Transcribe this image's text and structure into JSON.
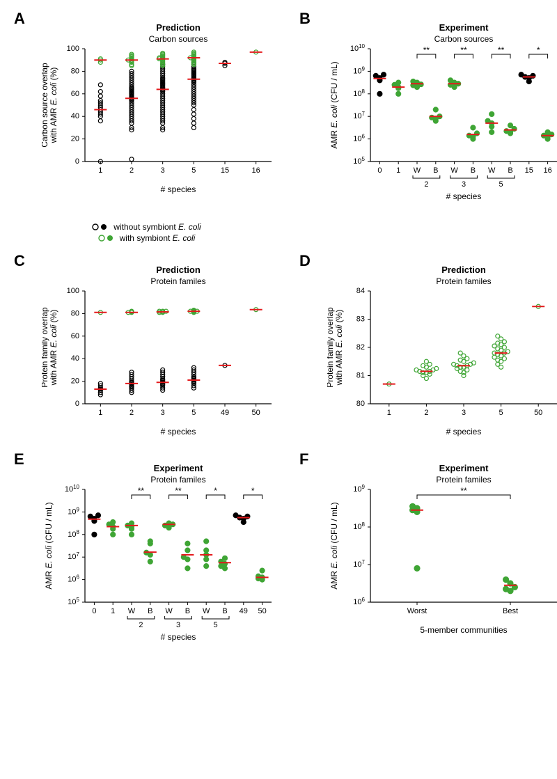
{
  "colors": {
    "black": "#000000",
    "green": "#3fa535",
    "red": "#e41a1c",
    "axis": "#000000"
  },
  "legend": {
    "without": "without symbiont ",
    "with": "with symbiont ",
    "ecoli": "E. coli"
  },
  "panels": {
    "A": {
      "label": "A",
      "title1": "Prediction",
      "title2": "Carbon sources",
      "ylabel": "Carbon source overlap\nwith AMR E. coli (%)",
      "xlabel": "# species",
      "xticks": [
        "1",
        "2",
        "3",
        "5",
        "15",
        "16"
      ],
      "ylim": [
        0,
        100
      ],
      "yticks": [
        0,
        20,
        40,
        60,
        80,
        100
      ],
      "groups": [
        {
          "x": 0,
          "color": "black",
          "median": 46,
          "pts": [
            0,
            36,
            40,
            42,
            44,
            46,
            48,
            50,
            52,
            54,
            58,
            62,
            68
          ]
        },
        {
          "x": 0,
          "color": "green",
          "median": 90,
          "pts": [
            88,
            90,
            91
          ]
        },
        {
          "x": 1,
          "color": "black",
          "median": 56,
          "pts": [
            2,
            28,
            30,
            34,
            36,
            38,
            40,
            42,
            44,
            46,
            48,
            50,
            52,
            54,
            55,
            56,
            57,
            58,
            59,
            60,
            61,
            62,
            63,
            64,
            65,
            66,
            68,
            70,
            72,
            74,
            76,
            78,
            80
          ]
        },
        {
          "x": 1,
          "color": "green",
          "median": 90,
          "pts": [
            85,
            86,
            88,
            89,
            90,
            90,
            91,
            92,
            93,
            94,
            95
          ]
        },
        {
          "x": 2,
          "color": "black",
          "median": 64,
          "pts": [
            28,
            30,
            34,
            36,
            38,
            40,
            42,
            44,
            46,
            48,
            50,
            52,
            54,
            56,
            58,
            60,
            62,
            63,
            64,
            65,
            66,
            67,
            68,
            69,
            70,
            71,
            72,
            73,
            74,
            76,
            78,
            80,
            82,
            84,
            86
          ]
        },
        {
          "x": 2,
          "color": "green",
          "median": 91,
          "pts": [
            85,
            86,
            87,
            88,
            89,
            90,
            91,
            91,
            92,
            92,
            93,
            94,
            95,
            96
          ]
        },
        {
          "x": 3,
          "color": "black",
          "median": 73,
          "pts": [
            30,
            34,
            38,
            42,
            46,
            50,
            52,
            54,
            56,
            58,
            60,
            62,
            64,
            66,
            68,
            70,
            71,
            72,
            73,
            74,
            75,
            76,
            77,
            78,
            79,
            80,
            81,
            82,
            84,
            86,
            88,
            90
          ]
        },
        {
          "x": 3,
          "color": "green",
          "median": 92,
          "pts": [
            86,
            87,
            88,
            89,
            90,
            91,
            92,
            92,
            93,
            94,
            95,
            96,
            97
          ]
        },
        {
          "x": 4,
          "color": "black",
          "median": 87,
          "pts": [
            85,
            87,
            88
          ]
        },
        {
          "x": 5,
          "color": "green",
          "median": 97,
          "pts": [
            97
          ]
        }
      ]
    },
    "B": {
      "label": "B",
      "title1": "Experiment",
      "title2": "Carbon sources",
      "ylabel": "AMR E. coli (CFU / mL)",
      "xlabel": "# species",
      "xticks": [
        "0",
        "1",
        "W",
        "B",
        "W",
        "B",
        "W",
        "B",
        "15",
        "16"
      ],
      "groupbrackets": [
        {
          "span": [
            2,
            3
          ],
          "label": "2"
        },
        {
          "span": [
            4,
            5
          ],
          "label": "3"
        },
        {
          "span": [
            6,
            7
          ],
          "label": "5"
        }
      ],
      "ylim": [
        5,
        10
      ],
      "yticks": [
        5,
        6,
        7,
        8,
        9,
        10
      ],
      "sig": [
        {
          "a": 2,
          "b": 3,
          "t": "**"
        },
        {
          "a": 4,
          "b": 5,
          "t": "**"
        },
        {
          "a": 6,
          "b": 7,
          "t": "**"
        },
        {
          "a": 8,
          "b": 9,
          "t": "*"
        }
      ],
      "groups": [
        {
          "x": 0,
          "color": "black",
          "fill": true,
          "median": 8.68,
          "pts": [
            8.0,
            8.6,
            8.7,
            8.8,
            8.85
          ]
        },
        {
          "x": 1,
          "color": "green",
          "fill": true,
          "median": 8.3,
          "pts": [
            8.0,
            8.25,
            8.3,
            8.4,
            8.5
          ]
        },
        {
          "x": 2,
          "color": "green",
          "fill": true,
          "median": 8.45,
          "pts": [
            8.3,
            8.38,
            8.42,
            8.5,
            8.55
          ]
        },
        {
          "x": 3,
          "color": "green",
          "fill": true,
          "median": 7.0,
          "pts": [
            6.8,
            6.9,
            6.95,
            7.0,
            7.3
          ]
        },
        {
          "x": 4,
          "color": "green",
          "fill": true,
          "median": 8.45,
          "pts": [
            8.3,
            8.4,
            8.45,
            8.5,
            8.6
          ]
        },
        {
          "x": 5,
          "color": "green",
          "fill": true,
          "median": 6.2,
          "pts": [
            6.0,
            6.1,
            6.15,
            6.25,
            6.5
          ]
        },
        {
          "x": 6,
          "color": "green",
          "fill": true,
          "median": 6.7,
          "pts": [
            6.3,
            6.55,
            6.7,
            6.8,
            7.1
          ]
        },
        {
          "x": 7,
          "color": "green",
          "fill": true,
          "median": 6.4,
          "pts": [
            6.25,
            6.3,
            6.35,
            6.45,
            6.6
          ]
        },
        {
          "x": 8,
          "color": "black",
          "fill": true,
          "median": 8.75,
          "pts": [
            8.55,
            8.7,
            8.75,
            8.8,
            8.85
          ]
        },
        {
          "x": 9,
          "color": "green",
          "fill": true,
          "median": 6.15,
          "pts": [
            6.0,
            6.1,
            6.15,
            6.2,
            6.3
          ]
        }
      ]
    },
    "C": {
      "label": "C",
      "title1": "Prediction",
      "title2": "Protein familes",
      "ylabel": "Protein family overlap\nwith AMR E. coli (%)",
      "xlabel": "# species",
      "xticks": [
        "1",
        "2",
        "3",
        "5",
        "49",
        "50"
      ],
      "ylim": [
        0,
        100
      ],
      "yticks": [
        0,
        20,
        40,
        60,
        80,
        100
      ],
      "groups": [
        {
          "x": 0,
          "color": "black",
          "median": 13,
          "pts": [
            8,
            10,
            12,
            13,
            14,
            16,
            18
          ]
        },
        {
          "x": 0,
          "color": "green",
          "median": 81,
          "pts": [
            81
          ]
        },
        {
          "x": 1,
          "color": "black",
          "median": 18,
          "pts": [
            10,
            12,
            14,
            15,
            16,
            17,
            18,
            19,
            20,
            22,
            24,
            26,
            28
          ]
        },
        {
          "x": 1,
          "color": "green",
          "median": 81,
          "pts": [
            81,
            81,
            81.5,
            82
          ]
        },
        {
          "x": 2,
          "color": "black",
          "median": 19,
          "pts": [
            12,
            14,
            16,
            17,
            18,
            19,
            20,
            21,
            22,
            24,
            26,
            28,
            30
          ]
        },
        {
          "x": 2,
          "color": "green",
          "median": 81.5,
          "pts": [
            81,
            81,
            81.5,
            82,
            82,
            82
          ]
        },
        {
          "x": 3,
          "color": "black",
          "median": 21,
          "pts": [
            14,
            16,
            18,
            19,
            20,
            21,
            22,
            23,
            24,
            26,
            28,
            30,
            32
          ]
        },
        {
          "x": 3,
          "color": "green",
          "median": 82,
          "pts": [
            81,
            81.5,
            82,
            82,
            82,
            82.5,
            83
          ]
        },
        {
          "x": 4,
          "color": "black",
          "median": 34,
          "pts": [
            34
          ]
        },
        {
          "x": 5,
          "color": "green",
          "median": 83.5,
          "pts": [
            83.5
          ]
        }
      ]
    },
    "D": {
      "label": "D",
      "title1": "Prediction",
      "title2": "Protein familes",
      "ylabel": "Protein family overlap\nwith AMR E. coli (%)",
      "xlabel": "# species",
      "xticks": [
        "1",
        "2",
        "3",
        "5",
        "50"
      ],
      "ylim": [
        80,
        84
      ],
      "yticks": [
        80,
        81,
        82,
        83,
        84
      ],
      "groups": [
        {
          "x": 0,
          "color": "green",
          "median": 80.7,
          "pts": [
            80.7
          ]
        },
        {
          "x": 1,
          "color": "green",
          "median": 81.15,
          "pts": [
            80.9,
            81.0,
            81.05,
            81.1,
            81.1,
            81.15,
            81.15,
            81.2,
            81.2,
            81.25,
            81.3,
            81.35,
            81.4,
            81.5
          ]
        },
        {
          "x": 2,
          "color": "green",
          "median": 81.35,
          "pts": [
            81.0,
            81.1,
            81.15,
            81.2,
            81.25,
            81.3,
            81.3,
            81.35,
            81.35,
            81.4,
            81.4,
            81.45,
            81.5,
            81.55,
            81.6,
            81.7,
            81.8
          ]
        },
        {
          "x": 3,
          "color": "green",
          "median": 81.8,
          "pts": [
            81.3,
            81.4,
            81.5,
            81.55,
            81.6,
            81.65,
            81.7,
            81.75,
            81.8,
            81.8,
            81.85,
            81.9,
            81.95,
            82.0,
            82.05,
            82.1,
            82.15,
            82.2,
            82.3,
            82.4
          ]
        },
        {
          "x": 4,
          "color": "green",
          "median": 83.45,
          "pts": [
            83.45
          ]
        }
      ]
    },
    "E": {
      "label": "E",
      "title1": "Experiment",
      "title2": "Protein familes",
      "ylabel": "AMR E. coli (CFU / mL)",
      "xlabel": "# species",
      "xticks": [
        "0",
        "1",
        "W",
        "B",
        "W",
        "B",
        "W",
        "B",
        "49",
        "50"
      ],
      "groupbrackets": [
        {
          "span": [
            2,
            3
          ],
          "label": "2"
        },
        {
          "span": [
            4,
            5
          ],
          "label": "3"
        },
        {
          "span": [
            6,
            7
          ],
          "label": "5"
        }
      ],
      "ylim": [
        5,
        10
      ],
      "yticks": [
        5,
        6,
        7,
        8,
        9,
        10
      ],
      "sig": [
        {
          "a": 2,
          "b": 3,
          "t": "**"
        },
        {
          "a": 4,
          "b": 5,
          "t": "**"
        },
        {
          "a": 6,
          "b": 7,
          "t": "*"
        },
        {
          "a": 8,
          "b": 9,
          "t": "*"
        }
      ],
      "groups": [
        {
          "x": 0,
          "color": "black",
          "fill": true,
          "median": 8.68,
          "pts": [
            8.0,
            8.6,
            8.7,
            8.8,
            8.85
          ]
        },
        {
          "x": 1,
          "color": "green",
          "fill": true,
          "median": 8.35,
          "pts": [
            8.0,
            8.25,
            8.35,
            8.45,
            8.55
          ]
        },
        {
          "x": 2,
          "color": "green",
          "fill": true,
          "median": 8.4,
          "pts": [
            8.0,
            8.25,
            8.35,
            8.4,
            8.5
          ]
        },
        {
          "x": 3,
          "color": "green",
          "fill": true,
          "median": 7.22,
          "pts": [
            6.8,
            7.1,
            7.2,
            7.6,
            7.7
          ]
        },
        {
          "x": 4,
          "color": "green",
          "fill": true,
          "median": 8.45,
          "pts": [
            8.3,
            8.4,
            8.45,
            8.5
          ]
        },
        {
          "x": 5,
          "color": "green",
          "fill": true,
          "median": 7.1,
          "pts": [
            6.5,
            6.9,
            7.0,
            7.3,
            7.6
          ]
        },
        {
          "x": 6,
          "color": "green",
          "fill": true,
          "median": 7.1,
          "pts": [
            6.6,
            6.9,
            7.1,
            7.3,
            7.7
          ]
        },
        {
          "x": 7,
          "color": "green",
          "fill": true,
          "median": 6.75,
          "pts": [
            6.5,
            6.6,
            6.7,
            6.8,
            6.95
          ]
        },
        {
          "x": 8,
          "color": "black",
          "fill": true,
          "median": 8.75,
          "pts": [
            8.55,
            8.7,
            8.75,
            8.8,
            8.85
          ]
        },
        {
          "x": 9,
          "color": "green",
          "fill": true,
          "median": 6.1,
          "pts": [
            6.0,
            6.05,
            6.1,
            6.15,
            6.4
          ]
        }
      ]
    },
    "F": {
      "label": "F",
      "title1": "Experiment",
      "title2": "Protein familes",
      "ylabel": "AMR E. coli (CFU / mL)",
      "xlabel": "5-member communities",
      "xticks": [
        "Worst",
        "Best"
      ],
      "ylim": [
        6,
        9
      ],
      "yticks": [
        6,
        7,
        8,
        9
      ],
      "sig": [
        {
          "a": 0,
          "b": 1,
          "t": "**"
        }
      ],
      "groups": [
        {
          "x": 0,
          "color": "green",
          "fill": true,
          "median": 8.45,
          "pts": [
            6.9,
            8.4,
            8.45,
            8.5,
            8.55
          ]
        },
        {
          "x": 1,
          "color": "green",
          "fill": true,
          "median": 6.45,
          "pts": [
            6.3,
            6.35,
            6.4,
            6.5,
            6.6
          ]
        }
      ]
    }
  }
}
